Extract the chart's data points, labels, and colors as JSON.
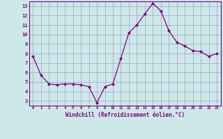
{
  "x": [
    0,
    1,
    2,
    3,
    4,
    5,
    6,
    7,
    8,
    9,
    10,
    11,
    12,
    13,
    14,
    15,
    16,
    17,
    18,
    19,
    20,
    21,
    22,
    23
  ],
  "y": [
    7.7,
    5.7,
    4.8,
    4.7,
    4.8,
    4.8,
    4.7,
    4.5,
    2.8,
    4.5,
    4.8,
    7.5,
    10.2,
    11.0,
    12.2,
    13.3,
    12.5,
    10.4,
    9.2,
    8.8,
    8.3,
    8.2,
    7.7,
    8.0
  ],
  "xlim": [
    -0.5,
    23.5
  ],
  "ylim": [
    2.5,
    13.5
  ],
  "yticks": [
    3,
    4,
    5,
    6,
    7,
    8,
    9,
    10,
    11,
    12,
    13
  ],
  "xticks": [
    0,
    1,
    2,
    3,
    4,
    5,
    6,
    7,
    8,
    9,
    10,
    11,
    12,
    13,
    14,
    15,
    16,
    17,
    18,
    19,
    20,
    21,
    22,
    23
  ],
  "xlabel": "Windchill (Refroidissement éolien,°C)",
  "line_color": "#800080",
  "marker": "D",
  "bg_color": "#cce8e8",
  "grid_color": "#aaaacc",
  "spine_color": "#800080"
}
